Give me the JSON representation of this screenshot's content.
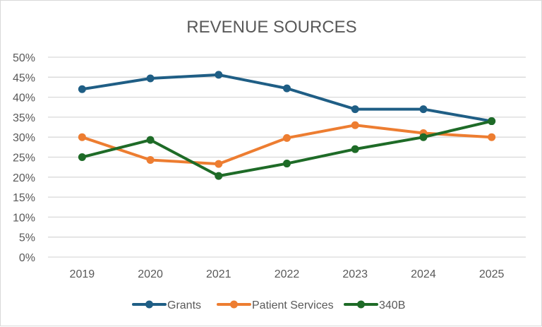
{
  "chart_data": {
    "type": "line",
    "title": "REVENUE SOURCES",
    "xlabel": "",
    "ylabel": "",
    "categories": [
      "2019",
      "2020",
      "2021",
      "2022",
      "2023",
      "2024",
      "2025"
    ],
    "ylim": [
      0,
      50
    ],
    "ytick_step": 5,
    "ytick_labels": [
      "0%",
      "5%",
      "10%",
      "15%",
      "20%",
      "25%",
      "30%",
      "35%",
      "40%",
      "45%",
      "50%"
    ],
    "grid": true,
    "legend_position": "bottom",
    "series": [
      {
        "name": "Grants",
        "color": "#1f5e85",
        "values": [
          42,
          44.7,
          45.6,
          42.2,
          37,
          37,
          34
        ]
      },
      {
        "name": "Patient Services",
        "color": "#ed7d31",
        "values": [
          30,
          24.3,
          23.3,
          29.8,
          33,
          31,
          30
        ]
      },
      {
        "name": "340B",
        "color": "#1e6b27",
        "values": [
          25,
          29.3,
          20.3,
          23.4,
          27,
          30,
          34
        ]
      }
    ]
  }
}
